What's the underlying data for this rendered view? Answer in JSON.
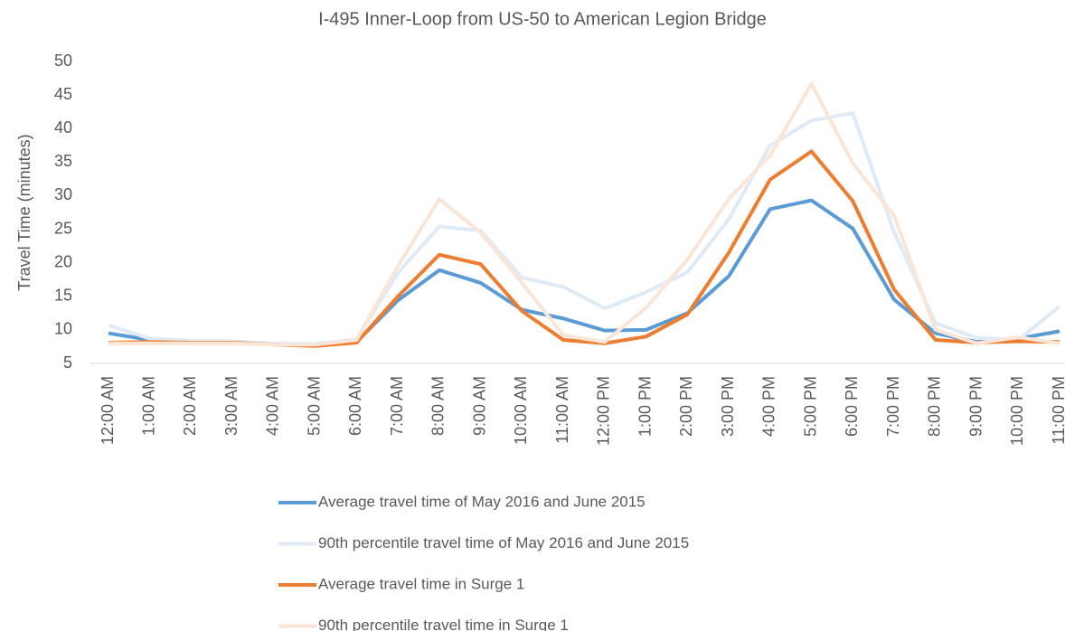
{
  "chart_data": {
    "type": "line",
    "title": "I-495 Inner-Loop from US-50 to American Legion Bridge",
    "y_label": "Travel Time (minutes)",
    "categories": [
      "12:00 AM",
      "1:00 AM",
      "2:00 AM",
      "3:00 AM",
      "4:00 AM",
      "5:00 AM",
      "6:00 AM",
      "7:00 AM",
      "8:00 AM",
      "9:00 AM",
      "10:00 AM",
      "11:00 AM",
      "12:00 PM",
      "1:00 PM",
      "2:00 PM",
      "3:00 PM",
      "4:00 PM",
      "5:00 PM",
      "6:00 PM",
      "7:00 PM",
      "8:00 PM",
      "9:00 PM",
      "10:00 PM",
      "11:00 PM"
    ],
    "series": [
      {
        "name": "Average travel time of May 2016 and June 2015",
        "color": "#5b9bd5",
        "values": [
          9.5,
          8.5,
          8.3,
          8.2,
          7.9,
          7.7,
          8.2,
          14.4,
          18.9,
          17.0,
          13.0,
          11.7,
          9.9,
          10.0,
          12.5,
          18.0,
          28.0,
          29.3,
          25.1,
          14.5,
          9.5,
          8.2,
          8.7,
          9.8
        ]
      },
      {
        "name": "90th percentile travel time of May 2016 and June 2015",
        "color": "#deebf7",
        "values": [
          10.7,
          8.7,
          8.4,
          8.3,
          8.0,
          7.9,
          8.6,
          18.5,
          25.4,
          24.8,
          17.8,
          16.4,
          13.2,
          15.6,
          18.6,
          26.5,
          37.5,
          41.2,
          42.3,
          24.5,
          11.0,
          8.8,
          8.5,
          13.5
        ]
      },
      {
        "name": "Average travel time in Surge 1",
        "color": "#ed7d31",
        "values": [
          8.1,
          8.2,
          8.1,
          8.1,
          7.8,
          7.6,
          8.1,
          15.0,
          21.2,
          19.8,
          12.8,
          8.5,
          8.0,
          9.0,
          12.3,
          21.5,
          32.4,
          36.6,
          29.2,
          16.0,
          8.5,
          8.1,
          8.3,
          8.2
        ]
      },
      {
        "name": "90th percentile travel time in Surge 1",
        "color": "#fbe5d6",
        "values": [
          8.0,
          8.0,
          8.0,
          8.0,
          7.8,
          7.8,
          8.5,
          19.5,
          29.5,
          24.5,
          17.0,
          9.2,
          8.2,
          13.3,
          20.5,
          29.5,
          36.0,
          46.7,
          34.8,
          27.0,
          10.0,
          8.0,
          8.9,
          8.0
        ]
      }
    ],
    "ylim": [
      5,
      50
    ],
    "yticks": [
      5,
      10,
      15,
      20,
      25,
      30,
      35,
      40,
      45,
      50
    ],
    "grid": false,
    "legend": "bottom"
  }
}
